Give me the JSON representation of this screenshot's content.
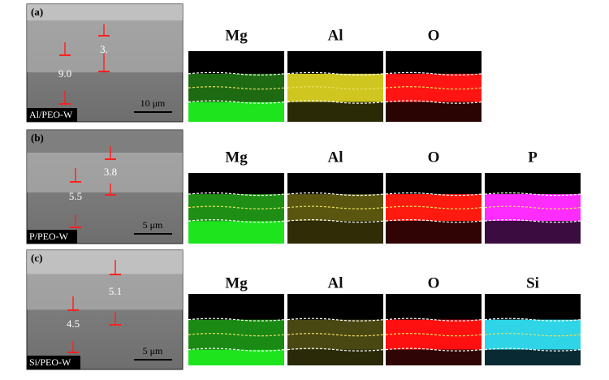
{
  "panels": [
    {
      "label": "(a)",
      "sample": "Al/PEO-W",
      "scale_bar": "10 μm",
      "thicknesses": [
        "9.0",
        "3."
      ],
      "maps": [
        "Mg",
        "Al",
        "O"
      ]
    },
    {
      "label": "(b)",
      "sample": "P/PEO-W",
      "scale_bar": "5 μm",
      "thicknesses": [
        "5.5",
        "3.8"
      ],
      "maps": [
        "Mg",
        "Al",
        "O",
        "P"
      ]
    },
    {
      "label": "(c)",
      "sample": "Si/PEO-W",
      "scale_bar": "5 μm",
      "thicknesses": [
        "4.5",
        "5.1"
      ],
      "maps": [
        "Mg",
        "Al",
        "O",
        "Si"
      ]
    }
  ]
}
